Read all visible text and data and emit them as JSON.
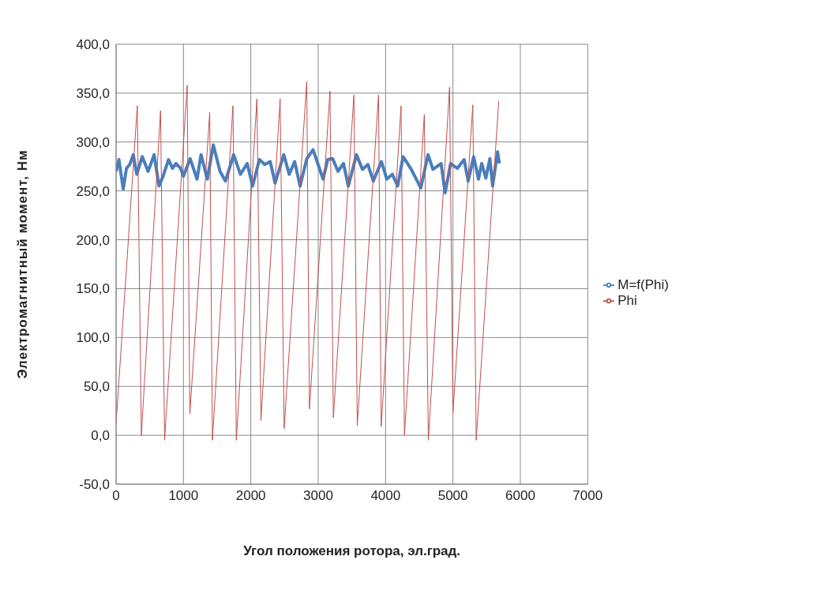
{
  "chart_data": {
    "type": "line",
    "xlabel": "Угол положения ротора, эл.град.",
    "ylabel": "Электромагнитный  момент, Нм",
    "xlim": [
      0,
      7000
    ],
    "xticks": [
      0,
      1000,
      2000,
      3000,
      4000,
      5000,
      6000,
      7000
    ],
    "ylim": [
      -50,
      400
    ],
    "yticks": [
      {
        "value": -50,
        "label": "-50,0"
      },
      {
        "value": 0,
        "label": "0,0"
      },
      {
        "value": 50,
        "label": "50,0"
      },
      {
        "value": 100,
        "label": "100,0"
      },
      {
        "value": 150,
        "label": "150,0"
      },
      {
        "value": 200,
        "label": "200,0"
      },
      {
        "value": 250,
        "label": "250,0"
      },
      {
        "value": 300,
        "label": "300,0"
      },
      {
        "value": 350,
        "label": "350,0"
      },
      {
        "value": 400,
        "label": "400,0"
      }
    ],
    "grid": true,
    "legend": "right",
    "series": [
      {
        "name": "M=f(Phi)",
        "color": "#4a7ebb",
        "x": [
          0,
          42,
          106,
          154,
          203,
          255,
          307,
          388,
          476,
          565,
          637,
          698,
          778,
          838,
          887,
          959,
          1000,
          1100,
          1201,
          1261,
          1354,
          1443,
          1543,
          1623,
          1745,
          1845,
          1946,
          2026,
          2127,
          2207,
          2288,
          2360,
          2489,
          2570,
          2650,
          2731,
          2831,
          2924,
          3073,
          3141,
          3214,
          3294,
          3375,
          3447,
          3568,
          3657,
          3737,
          3818,
          3938,
          4019,
          4100,
          4180,
          4260,
          4381,
          4522,
          4630,
          4703,
          4824,
          4884,
          4965,
          5065,
          5166,
          5226,
          5307,
          5379,
          5427,
          5488,
          5548,
          5589,
          5661,
          5689
        ],
        "values": [
          270,
          282,
          252,
          273,
          277,
          287,
          267,
          285,
          270,
          287,
          255,
          265,
          282,
          273,
          278,
          273,
          265,
          283,
          262,
          287,
          262,
          297,
          270,
          260,
          287,
          267,
          278,
          255,
          282,
          277,
          280,
          258,
          287,
          267,
          280,
          255,
          283,
          292,
          262,
          282,
          283,
          270,
          278,
          255,
          287,
          272,
          277,
          260,
          280,
          262,
          267,
          255,
          285,
          272,
          253,
          287,
          272,
          278,
          248,
          278,
          273,
          282,
          260,
          285,
          262,
          278,
          263,
          283,
          255,
          290,
          278
        ]
      },
      {
        "name": "Phi",
        "color": "#c0504d",
        "x": [
          0,
          315,
          375,
          660,
          720,
          1055,
          1095,
          1390,
          1430,
          1735,
          1785,
          2090,
          2150,
          2435,
          2495,
          2830,
          2870,
          3175,
          3225,
          3530,
          3580,
          3895,
          3935,
          4230,
          4280,
          4575,
          4635,
          4950,
          5000,
          5295,
          5345,
          5680
        ],
        "values": [
          12,
          337,
          0,
          332,
          -5,
          358,
          22,
          330,
          -5,
          337,
          -5,
          344,
          15,
          344,
          7,
          362,
          27,
          352,
          18,
          348,
          10,
          348,
          9,
          337,
          0,
          328,
          -5,
          356,
          23,
          338,
          -5,
          342
        ]
      }
    ]
  }
}
